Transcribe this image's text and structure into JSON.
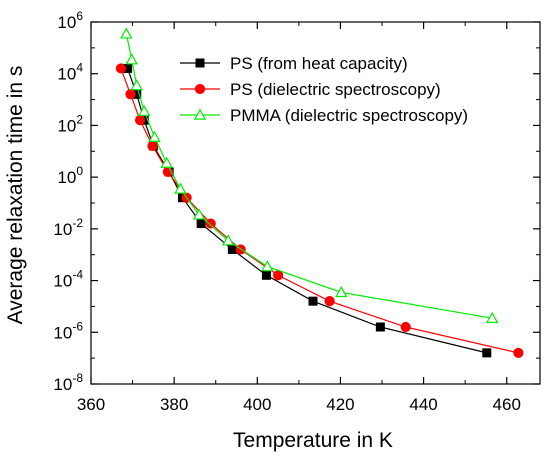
{
  "chart_data": {
    "type": "scatter",
    "title": "",
    "xlabel": "Temperature in K",
    "ylabel": "Average relaxation time in s",
    "xlim": [
      360,
      468
    ],
    "ylim": [
      1e-08,
      1000000.0
    ],
    "y_scale": "log",
    "x_ticks": [
      360,
      380,
      400,
      420,
      440,
      460
    ],
    "y_ticks": [
      {
        "value": 1e-08,
        "mantissa": "10",
        "exp": "-8"
      },
      {
        "value": 1e-06,
        "mantissa": "10",
        "exp": "-6"
      },
      {
        "value": 0.0001,
        "mantissa": "10",
        "exp": "-4"
      },
      {
        "value": 0.01,
        "mantissa": "10",
        "exp": "-2"
      },
      {
        "value": 1.0,
        "mantissa": "10",
        "exp": "0"
      },
      {
        "value": 100.0,
        "mantissa": "10",
        "exp": "2"
      },
      {
        "value": 10000.0,
        "mantissa": "10",
        "exp": "4"
      },
      {
        "value": 1000000.0,
        "mantissa": "10",
        "exp": "6"
      }
    ],
    "grid": false,
    "legend_position": "top-right",
    "series": [
      {
        "name": "PS (from heat capacity)",
        "color": "#000000",
        "marker": "square",
        "marker_filled": true,
        "points": [
          [
            368.8,
            16000.0
          ],
          [
            371.0,
            1600.0
          ],
          [
            372.8,
            160.0
          ],
          [
            375.0,
            16.0
          ],
          [
            378.8,
            1.6
          ],
          [
            382.0,
            0.16
          ],
          [
            386.5,
            0.016
          ],
          [
            394.0,
            0.0016
          ],
          [
            402.2,
            0.00016
          ],
          [
            413.4,
            1.6e-05
          ],
          [
            429.6,
            1.6e-06
          ],
          [
            455.2,
            1.6e-07
          ]
        ]
      },
      {
        "name": "PS (dielectric spectroscopy)",
        "color": "#ff0000",
        "marker": "circle",
        "marker_filled": true,
        "points": [
          [
            367.2,
            16000.0
          ],
          [
            369.5,
            1600.0
          ],
          [
            371.8,
            160.0
          ],
          [
            374.8,
            16.0
          ],
          [
            378.5,
            1.6
          ],
          [
            383.0,
            0.16
          ],
          [
            388.8,
            0.016
          ],
          [
            396.0,
            0.0016
          ],
          [
            405.0,
            0.00016
          ],
          [
            417.4,
            1.6e-05
          ],
          [
            435.7,
            1.6e-06
          ],
          [
            462.8,
            1.6e-07
          ]
        ]
      },
      {
        "name": "PMMA (dielectric spectroscopy)",
        "color": "#00ee00",
        "marker": "triangle",
        "marker_filled": false,
        "points": [
          [
            368.5,
            350000.0
          ],
          [
            369.8,
            35000.0
          ],
          [
            371.0,
            3500.0
          ],
          [
            372.8,
            350.0
          ],
          [
            375.3,
            35.0
          ],
          [
            378.2,
            3.5
          ],
          [
            381.5,
            0.35
          ],
          [
            386.0,
            0.035
          ],
          [
            393.0,
            0.0035
          ],
          [
            402.4,
            0.00035
          ],
          [
            420.2,
            3.5e-05
          ],
          [
            456.5,
            3.5e-06
          ]
        ]
      }
    ]
  }
}
